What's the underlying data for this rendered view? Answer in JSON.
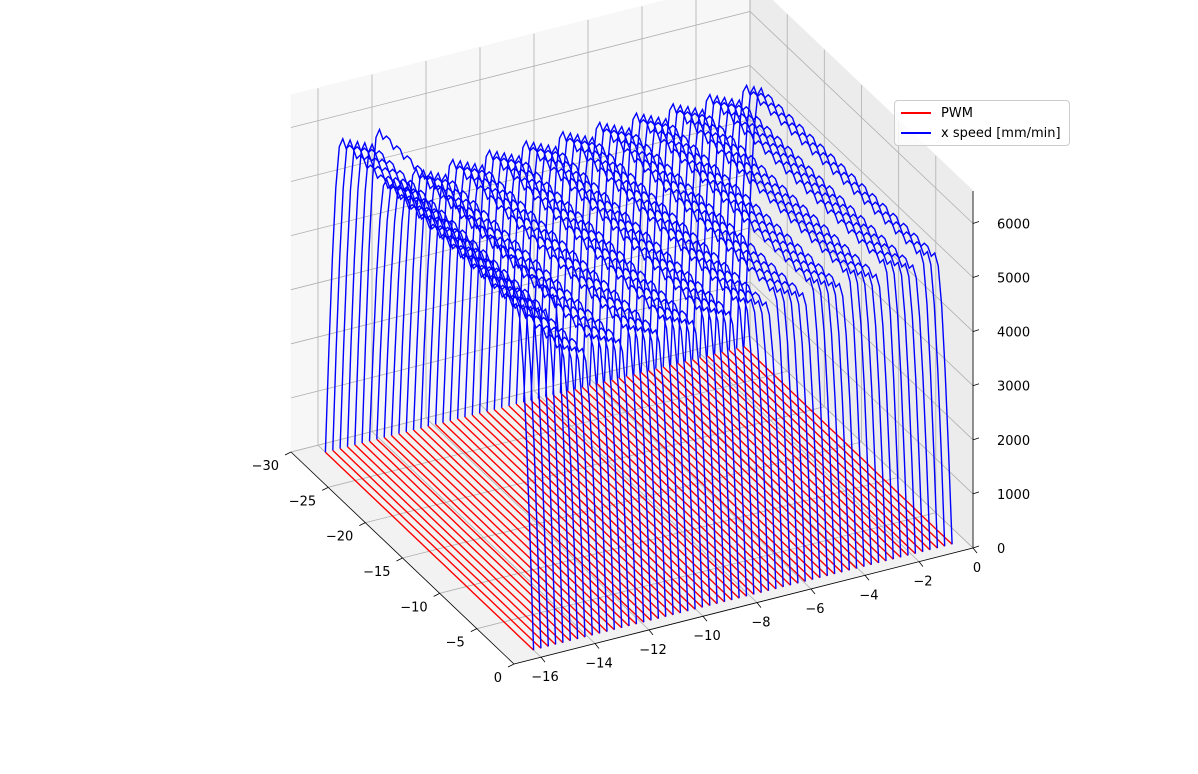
{
  "chart_data": {
    "type": "line",
    "projection": "3d",
    "title": "",
    "xlabel": "",
    "ylabel": "",
    "zlabel": "",
    "xlim": [
      -30,
      0
    ],
    "ylim": [
      -17,
      0
    ],
    "zlim": [
      0,
      6600
    ],
    "x_ticks": [
      "−30",
      "−25",
      "−20",
      "−15",
      "−10",
      "−5",
      "0"
    ],
    "y_ticks": [
      "−16",
      "−14",
      "−12",
      "−10",
      "−8",
      "−6",
      "−4",
      "−2",
      "0"
    ],
    "z_ticks": [
      "0",
      "1000",
      "2000",
      "3000",
      "4000",
      "5000",
      "6000"
    ],
    "grid": true,
    "legend_position": "top-right",
    "series": [
      {
        "name": "PWM",
        "color": "#ff0000",
        "description_of_shape": "many parallel passes near z=0",
        "n_passes": 58,
        "typical_value": 0
      },
      {
        "name": "x speed [mm/min]",
        "color": "#0000ff",
        "n_passes": 58,
        "plateau_value": 5200,
        "peak_value": 6100
      }
    ]
  }
}
